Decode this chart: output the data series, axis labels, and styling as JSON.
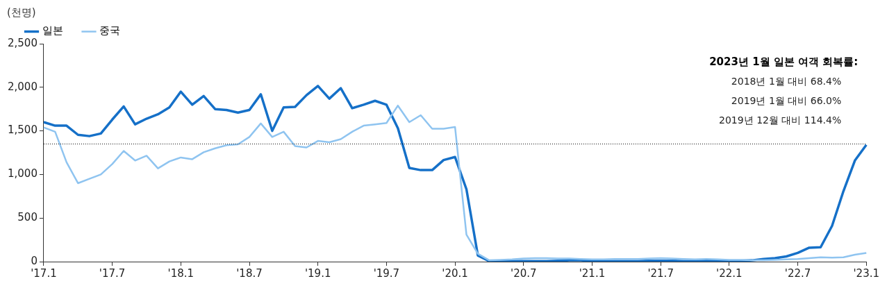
{
  "chart_data": {
    "type": "line",
    "ylabel": "(천명)",
    "categories": [
      "'17.1",
      null,
      null,
      null,
      null,
      null,
      "'17.7",
      null,
      null,
      null,
      null,
      null,
      "'18.1",
      null,
      null,
      null,
      null,
      null,
      "'18.7",
      null,
      null,
      null,
      null,
      null,
      "'19.1",
      null,
      null,
      null,
      null,
      null,
      "'19.7",
      null,
      null,
      null,
      null,
      null,
      "'20.1",
      null,
      null,
      null,
      null,
      null,
      "'20.7",
      null,
      null,
      null,
      null,
      null,
      "'21.1",
      null,
      null,
      null,
      null,
      null,
      "'21.7",
      null,
      null,
      null,
      null,
      null,
      "'22.1",
      null,
      null,
      null,
      null,
      null,
      "'22.7",
      null,
      null,
      null,
      null,
      null,
      "'23.1"
    ],
    "series": [
      {
        "name": "일본",
        "color": "#1570c8",
        "values": [
          1600,
          1560,
          1560,
          1455,
          1440,
          1470,
          1630,
          1780,
          1575,
          1640,
          1690,
          1770,
          1950,
          1800,
          1900,
          1750,
          1740,
          1710,
          1740,
          1920,
          1500,
          1770,
          1775,
          1910,
          2015,
          1870,
          1990,
          1760,
          1800,
          1845,
          1800,
          1530,
          1075,
          1050,
          1050,
          1165,
          1200,
          830,
          70,
          5,
          5,
          5,
          5,
          5,
          5,
          10,
          15,
          15,
          10,
          5,
          5,
          5,
          5,
          10,
          10,
          10,
          5,
          5,
          10,
          10,
          5,
          10,
          15,
          30,
          40,
          60,
          100,
          160,
          165,
          410,
          810,
          1160,
          1340
        ]
      },
      {
        "name": "중국",
        "color": "#8fc4f0",
        "values": [
          1540,
          1490,
          1140,
          900,
          950,
          1000,
          1120,
          1270,
          1160,
          1215,
          1070,
          1150,
          1195,
          1175,
          1255,
          1300,
          1335,
          1345,
          1430,
          1585,
          1430,
          1490,
          1325,
          1310,
          1385,
          1370,
          1405,
          1490,
          1560,
          1575,
          1590,
          1790,
          1600,
          1680,
          1525,
          1525,
          1545,
          310,
          90,
          15,
          20,
          25,
          35,
          40,
          40,
          35,
          35,
          30,
          25,
          25,
          30,
          30,
          30,
          35,
          40,
          35,
          30,
          25,
          30,
          25,
          20,
          20,
          15,
          15,
          20,
          25,
          30,
          40,
          50,
          45,
          50,
          80,
          100
        ]
      }
    ],
    "ylim": [
      0,
      2500
    ],
    "yticks": [
      0,
      500,
      {
        "value": 1000,
        "label": "1,000"
      },
      {
        "value": 1500,
        "label": "1,500"
      },
      {
        "value": 2000,
        "label": "2,000"
      },
      {
        "value": 2500,
        "label": "2,500"
      }
    ],
    "ref_lines": [
      {
        "axis": "y",
        "value": 1350,
        "color": "#000000",
        "line_style": "dotted"
      }
    ],
    "annotations": [
      "2023년 1월 일본 여객 회복률:",
      "2018년 1월 대비 68.4%",
      "2019년 1월 대비 66.0%",
      "2019년 12월 대비 114.4%"
    ],
    "legend": "top",
    "grid": false,
    "marker": "none",
    "line_style": "solid"
  }
}
